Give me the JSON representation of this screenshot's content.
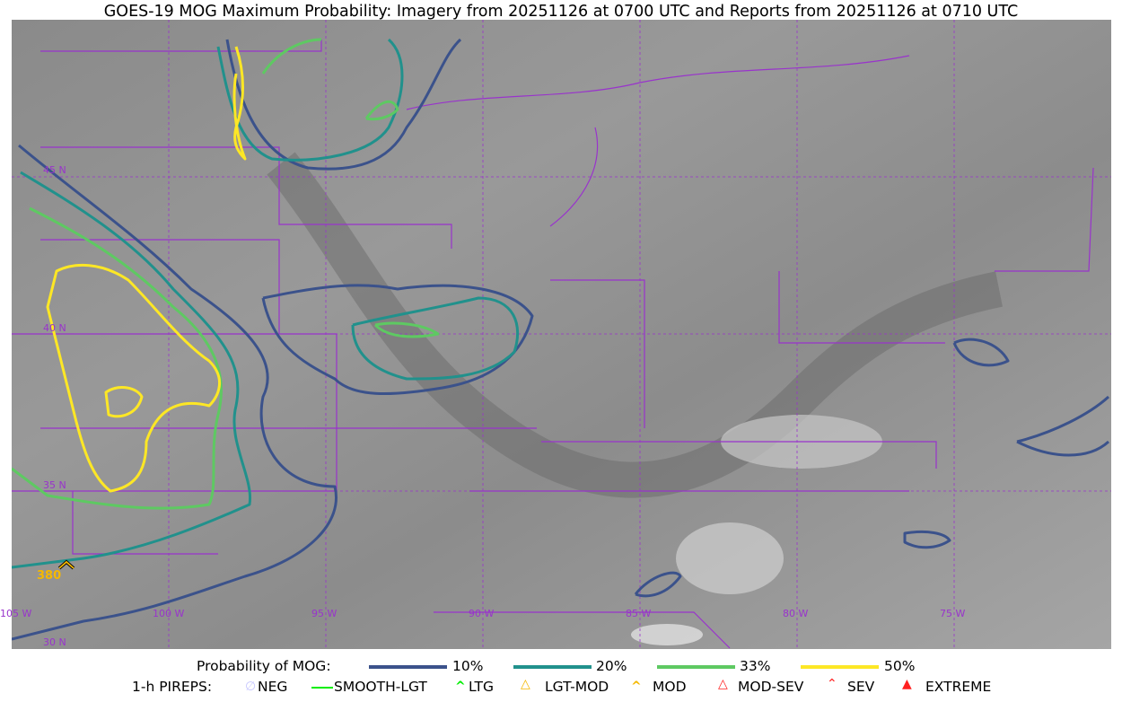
{
  "title": "GOES-19 MOG Maximum Probability: Imagery from 20251126 at 0700 UTC and Reports from 20251126 at 0710 UTC",
  "map": {
    "lat_labels": [
      "45 N",
      "40 N",
      "35 N",
      "30 N"
    ],
    "lon_labels": [
      "105 W",
      "100 W",
      "95 W",
      "90 W",
      "85 W",
      "80 W",
      "75 W"
    ],
    "grid_color": "#9933cc",
    "pireps": [
      {
        "type": "MOD",
        "altitude_label": "380",
        "color": "#f5b800"
      }
    ]
  },
  "legend": {
    "probability": {
      "label": "Probability of MOG:",
      "levels": [
        {
          "label": "10%",
          "color": "#3b528b"
        },
        {
          "label": "20%",
          "color": "#21918c"
        },
        {
          "label": "33%",
          "color": "#5ec962"
        },
        {
          "label": "50%",
          "color": "#fde725"
        }
      ]
    },
    "pireps": {
      "label": "1-h PIREPS:",
      "items": [
        {
          "label": "NEG",
          "icon": "neg-circle-icon",
          "color": "#c8c8ff"
        },
        {
          "label": "SMOOTH-LGT",
          "icon": "line-icon",
          "color": "#00ee00"
        },
        {
          "label": "LTG",
          "icon": "caret-icon",
          "color": "#00ee00"
        },
        {
          "label": "LGT-MOD",
          "icon": "caret-bar-icon",
          "color": "#f5b800"
        },
        {
          "label": "MOD",
          "icon": "caret-icon",
          "color": "#f5b800"
        },
        {
          "label": "MOD-SEV",
          "icon": "double-caret-bar-icon",
          "color": "#ff2020"
        },
        {
          "label": "SEV",
          "icon": "double-caret-icon",
          "color": "#ff2020"
        },
        {
          "label": "EXTREME",
          "icon": "filled-triangle-icon",
          "color": "#ff2020"
        }
      ]
    }
  }
}
